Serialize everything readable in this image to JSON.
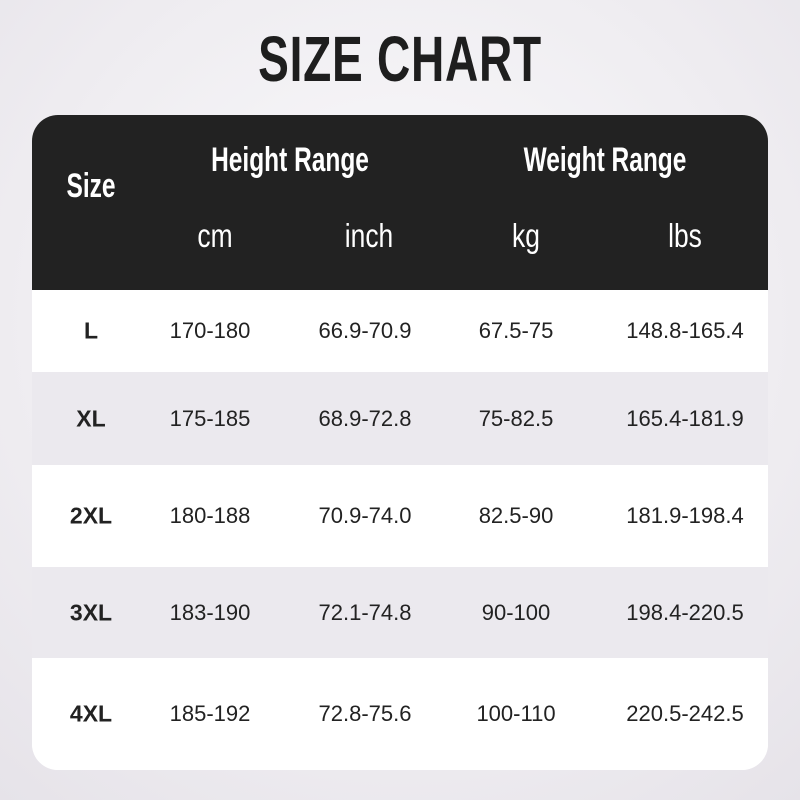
{
  "title": "SIZE CHART",
  "colors": {
    "header_bg": "#222222",
    "row_alt": "#ebe9ee",
    "row": "#ffffff"
  },
  "header": {
    "size": "Size",
    "height_range": "Height Range",
    "weight_range": "Weight Range",
    "units": [
      "cm",
      "inch",
      "kg",
      "lbs"
    ]
  },
  "rows": [
    {
      "size": "L",
      "cm": "170-180",
      "inch": "66.9-70.9",
      "kg": "67.5-75",
      "lbs": "148.8-165.4"
    },
    {
      "size": "XL",
      "cm": "175-185",
      "inch": "68.9-72.8",
      "kg": "75-82.5",
      "lbs": "165.4-181.9"
    },
    {
      "size": "2XL",
      "cm": "180-188",
      "inch": "70.9-74.0",
      "kg": "82.5-90",
      "lbs": "181.9-198.4"
    },
    {
      "size": "3XL",
      "cm": "183-190",
      "inch": "72.1-74.8",
      "kg": "90-100",
      "lbs": "198.4-220.5"
    },
    {
      "size": "4XL",
      "cm": "185-192",
      "inch": "72.8-75.6",
      "kg": "100-110",
      "lbs": "220.5-242.5"
    }
  ]
}
